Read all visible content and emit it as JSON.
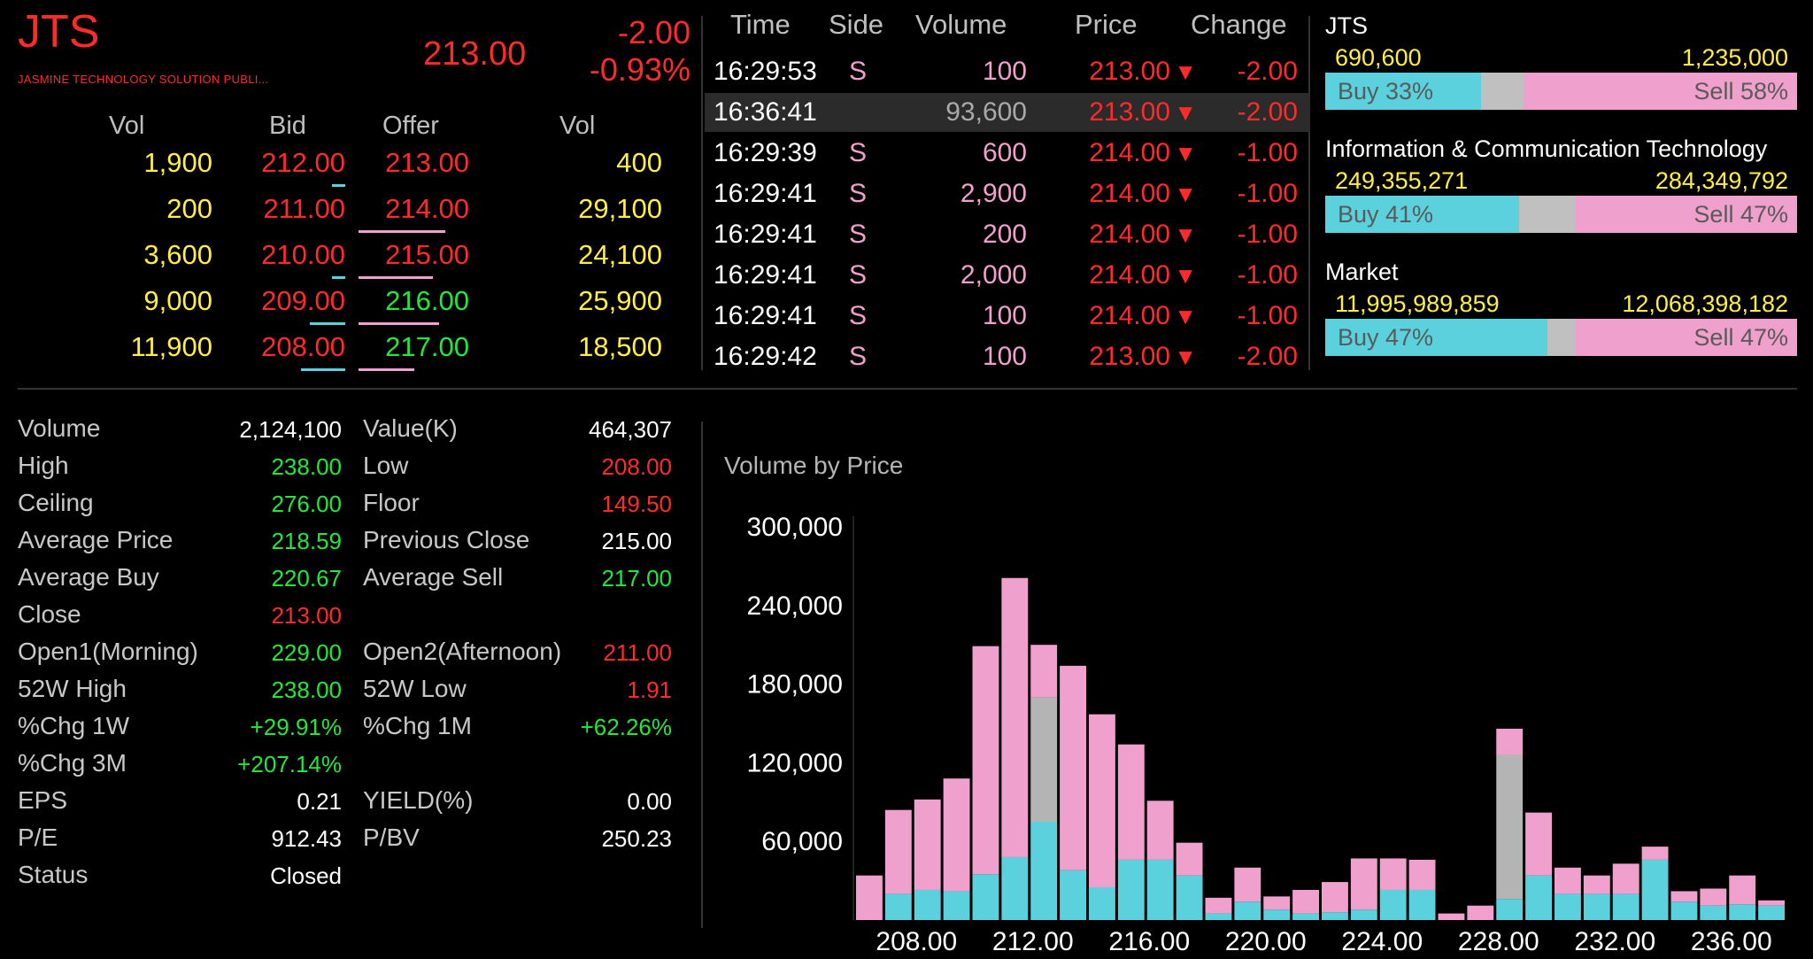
{
  "header": {
    "symbol": "JTS",
    "full_name": "JASMINE TECHNOLOGY SOLUTION PUBLI...",
    "last_price": "213.00",
    "change": "-2.00",
    "change_pct": "-0.93%"
  },
  "order_book": {
    "headers": {
      "bid_vol": "Vol",
      "bid": "Bid",
      "offer": "Offer",
      "offer_vol": "Vol"
    },
    "rows": [
      {
        "bid_vol": "1,900",
        "bid": "212.00",
        "offer": "213.00",
        "offer_vol": "400",
        "bid_bar": 0.15,
        "offer_bar": 0.0
      },
      {
        "bid_vol": "200",
        "bid": "211.00",
        "offer": "214.00",
        "offer_vol": "29,100",
        "bid_bar": 0.0,
        "offer_bar": 0.7
      },
      {
        "bid_vol": "3,600",
        "bid": "210.00",
        "offer": "215.00",
        "offer_vol": "24,100",
        "bid_bar": 0.15,
        "offer_bar": 0.6
      },
      {
        "bid_vol": "9,000",
        "bid": "209.00",
        "offer": "216.00",
        "offer_vol": "25,900",
        "bid_bar": 0.4,
        "offer_bar": 0.65
      },
      {
        "bid_vol": "11,900",
        "bid": "208.00",
        "offer": "217.00",
        "offer_vol": "18,500",
        "bid_bar": 0.5,
        "offer_bar": 0.45
      }
    ]
  },
  "ticker": {
    "headers": {
      "time": "Time",
      "side": "Side",
      "volume": "Volume",
      "price": "Price",
      "change": "Change"
    },
    "rows": [
      {
        "time": "16:29:53",
        "side": "S",
        "volume": "100",
        "price": "213.00",
        "change": "-2.00"
      },
      {
        "time": "16:36:41",
        "side": "",
        "volume": "93,600",
        "price": "213.00",
        "change": "-2.00"
      },
      {
        "time": "16:29:39",
        "side": "S",
        "volume": "600",
        "price": "214.00",
        "change": "-1.00"
      },
      {
        "time": "16:29:41",
        "side": "S",
        "volume": "2,900",
        "price": "214.00",
        "change": "-1.00"
      },
      {
        "time": "16:29:41",
        "side": "S",
        "volume": "200",
        "price": "214.00",
        "change": "-1.00"
      },
      {
        "time": "16:29:41",
        "side": "S",
        "volume": "2,000",
        "price": "214.00",
        "change": "-1.00"
      },
      {
        "time": "16:29:41",
        "side": "S",
        "volume": "100",
        "price": "214.00",
        "change": "-1.00"
      },
      {
        "time": "16:29:42",
        "side": "S",
        "volume": "100",
        "price": "213.00",
        "change": "-2.00"
      }
    ],
    "down_arrow": "▼"
  },
  "buy_sell": [
    {
      "name": "JTS",
      "buy_vol": "690,600",
      "sell_vol": "1,235,000",
      "buy_label": "Buy 33%",
      "sell_label": "Sell 58%",
      "buy": 0.33,
      "sell": 0.58
    },
    {
      "name": "Information & Communication Technology",
      "buy_vol": "249,355,271",
      "sell_vol": "284,349,792",
      "buy_label": "Buy 41%",
      "sell_label": "Sell 47%",
      "buy": 0.41,
      "sell": 0.47
    },
    {
      "name": "Market",
      "buy_vol": "11,995,989,859",
      "sell_vol": "12,068,398,182",
      "buy_label": "Buy 47%",
      "sell_label": "Sell 47%",
      "buy": 0.47,
      "sell": 0.47
    }
  ],
  "stats_left": [
    {
      "label": "Volume",
      "value": "2,124,100",
      "color": "white"
    },
    {
      "label": "High",
      "value": "238.00",
      "color": "green"
    },
    {
      "label": "Ceiling",
      "value": "276.00",
      "color": "green"
    },
    {
      "label": "Average Price",
      "value": "218.59",
      "color": "green"
    },
    {
      "label": "Average Buy",
      "value": "220.67",
      "color": "green"
    },
    {
      "label": "Close",
      "value": "213.00",
      "color": "red"
    },
    {
      "label": "Open1(Morning)",
      "value": "229.00",
      "color": "green"
    },
    {
      "label": "52W High",
      "value": "238.00",
      "color": "green"
    },
    {
      "label": "%Chg 1W",
      "value": "+29.91%",
      "color": "green"
    },
    {
      "label": "%Chg 3M",
      "value": "+207.14%",
      "color": "green"
    },
    {
      "label": "EPS",
      "value": "0.21",
      "color": "white"
    },
    {
      "label": "P/E",
      "value": "912.43",
      "color": "white"
    },
    {
      "label": "Status",
      "value": "Closed",
      "color": "white"
    }
  ],
  "stats_right": [
    {
      "label": "Value(K)",
      "value": "464,307",
      "color": "white"
    },
    {
      "label": "Low",
      "value": "208.00",
      "color": "red"
    },
    {
      "label": "Floor",
      "value": "149.50",
      "color": "red"
    },
    {
      "label": "Previous Close",
      "value": "215.00",
      "color": "white"
    },
    {
      "label": "Average Sell",
      "value": "217.00",
      "color": "green"
    },
    {
      "label": "",
      "value": "",
      "color": "white"
    },
    {
      "label": "Open2(Afternoon)",
      "value": "211.00",
      "color": "red"
    },
    {
      "label": "52W Low",
      "value": "1.91",
      "color": "red"
    },
    {
      "label": "%Chg 1M",
      "value": "+62.26%",
      "color": "green"
    },
    {
      "label": "",
      "value": "",
      "color": "white"
    },
    {
      "label": "YIELD(%)",
      "value": "0.00",
      "color": "white"
    },
    {
      "label": "P/BV",
      "value": "250.23",
      "color": "white"
    },
    {
      "label": "",
      "value": "",
      "color": "white"
    }
  ],
  "colors": {
    "red": "#ff2a2a",
    "green": "#22e83c",
    "yellow": "#ffee44",
    "buy": "#5ad1dc",
    "sell": "#f0a0cc",
    "unknown": "#b4b4b4",
    "white": "#ffffff"
  },
  "chart_data": {
    "type": "bar",
    "title": "Volume by Price",
    "stacked": true,
    "x": [
      207,
      208,
      209,
      210,
      211,
      212,
      213,
      214,
      215,
      216,
      217,
      218,
      219,
      220,
      221,
      222,
      223,
      224,
      225,
      226,
      227,
      228,
      229,
      230,
      231,
      232,
      233,
      234,
      235,
      236,
      237,
      238
    ],
    "series": [
      {
        "values": [
          0,
          20000,
          23000,
          22000,
          35000,
          48000,
          75000,
          38000,
          25000,
          46000,
          46000,
          34000,
          5000,
          14000,
          8000,
          5000,
          6000,
          8000,
          23000,
          23000,
          0,
          0,
          16000,
          34000,
          20000,
          20000,
          20000,
          46000,
          14000,
          11000,
          12000,
          11000
        ]
      },
      {
        "values": [
          0,
          0,
          0,
          0,
          0,
          0,
          95000,
          0,
          0,
          0,
          0,
          0,
          0,
          0,
          0,
          0,
          0,
          0,
          0,
          0,
          0,
          0,
          110000,
          0,
          0,
          0,
          0,
          0,
          0,
          0,
          0,
          0
        ]
      },
      {
        "values": [
          34000,
          64000,
          69000,
          86000,
          174000,
          213000,
          40000,
          156000,
          132000,
          88000,
          45000,
          25000,
          12000,
          26000,
          10000,
          18000,
          23000,
          39000,
          24000,
          23000,
          5000,
          11000,
          20000,
          48000,
          20000,
          14000,
          23000,
          10000,
          8000,
          13000,
          22000,
          4000
        ]
      }
    ],
    "ylim": [
      0,
      300000
    ],
    "yticks": [
      "300,000",
      "240,000",
      "180,000",
      "120,000",
      "60,000"
    ],
    "ytick_values": [
      300000,
      240000,
      180000,
      120000,
      60000
    ],
    "xticks": [
      "208.00",
      "212.00",
      "216.00",
      "220.00",
      "224.00",
      "228.00",
      "232.00",
      "236.00"
    ],
    "xtick_values": [
      208,
      212,
      216,
      220,
      224,
      228,
      232,
      236
    ]
  }
}
